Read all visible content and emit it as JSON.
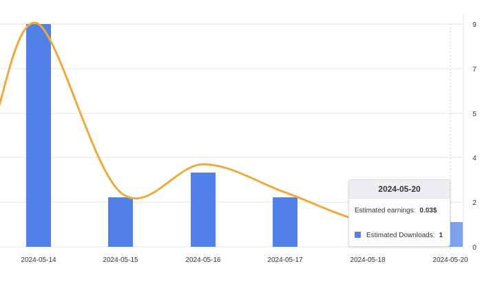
{
  "chart_data": {
    "type": "bar",
    "categories": [
      "2024-05-14",
      "2024-05-15",
      "2024-05-16",
      "2024-05-17",
      "2024-05-18",
      "2024-05-20"
    ],
    "y_ticks": [
      "9",
      "7",
      "5",
      "4",
      "2",
      "0"
    ],
    "series": [
      {
        "kind": "bar",
        "name": "Estimated Downloads",
        "values": [
          9,
          2,
          3,
          2,
          1,
          1
        ],
        "color": "#5181e8",
        "highlight_color": "#7fa2f0"
      },
      {
        "kind": "line",
        "name": "Estimated earnings",
        "smooth": true,
        "values": [
          0.27,
          0.066,
          0.1,
          0.066,
          0.03,
          0.03
        ],
        "color": "#efa93a"
      }
    ],
    "ylim": [
      0,
      9
    ],
    "grid": true,
    "highlighted_category": "2024-05-20",
    "tooltip": {
      "title": "2024-05-20",
      "earnings_label": "Estimated earnings:",
      "earnings_value": "0.03$",
      "downloads_label": "Estimated Downloads:",
      "downloads_value": "1"
    }
  }
}
